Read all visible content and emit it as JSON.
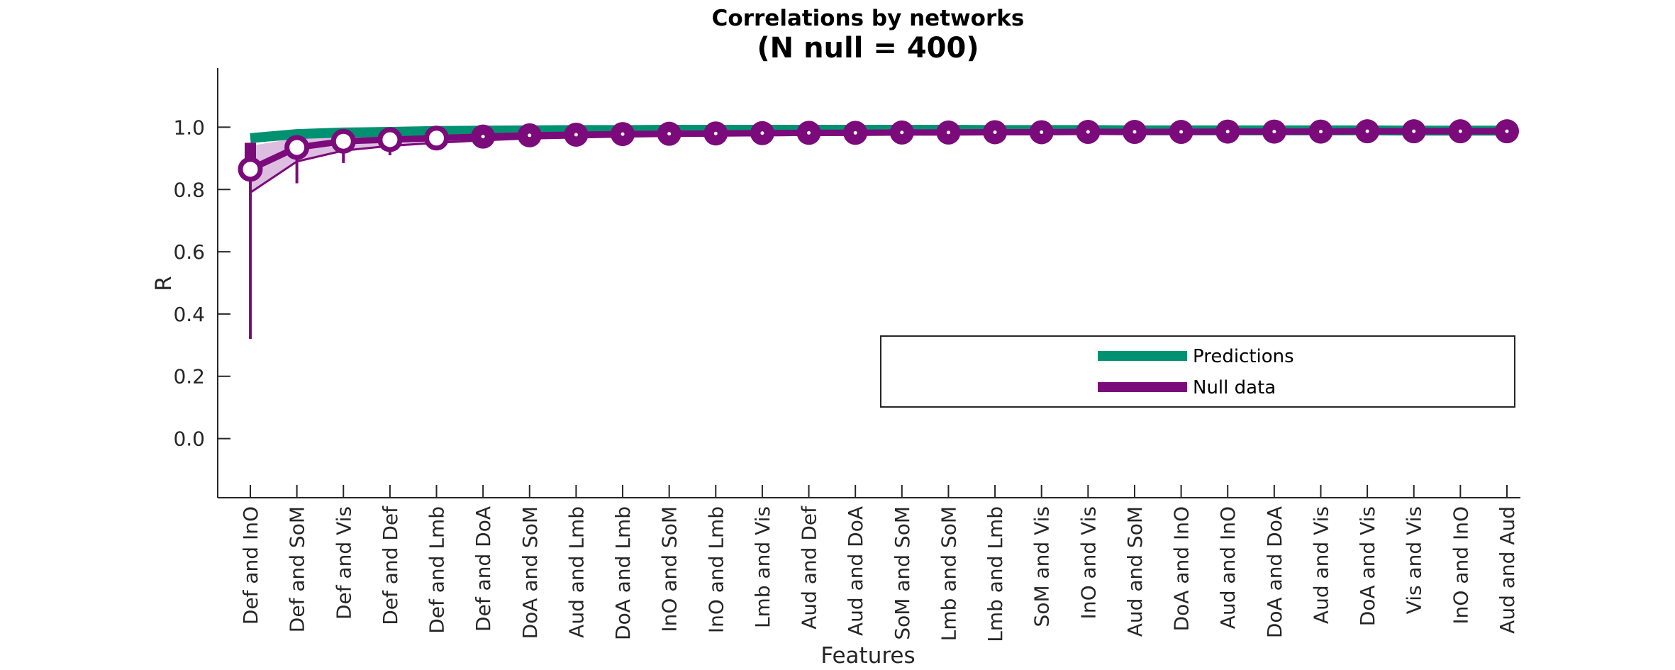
{
  "chart_data": {
    "type": "line",
    "title": "Correlations by networks",
    "subtitle": "(N null = 400)",
    "xlabel": "Features",
    "ylabel": "R",
    "ylim": [
      -0.19,
      1.19
    ],
    "yticks": [
      "0.0",
      "0.2",
      "0.4",
      "0.6",
      "0.8",
      "1.0"
    ],
    "ytick_values": [
      0.0,
      0.2,
      0.4,
      0.6,
      0.8,
      1.0
    ],
    "grid": false,
    "legend_position": "lower-right",
    "categories": [
      "Def and InO",
      "Def and SoM",
      "Def and Vis",
      "Def and Def",
      "Def and Lmb",
      "Def and DoA",
      "DoA and SoM",
      "Aud and Lmb",
      "DoA and Lmb",
      "InO and SoM",
      "InO and Lmb",
      "Lmb and Vis",
      "Aud and Def",
      "Aud and DoA",
      "SoM and SoM",
      "Lmb and SoM",
      "Lmb and Lmb",
      "SoM and Vis",
      "InO and Vis",
      "Aud and SoM",
      "DoA and InO",
      "Aud and InO",
      "DoA and DoA",
      "Aud and Vis",
      "DoA and Vis",
      "Vis and Vis",
      "InO and InO",
      "Aud and Aud"
    ],
    "series": [
      {
        "name": "Predictions",
        "color": "#009270",
        "values": [
          0.965,
          0.978,
          0.983,
          0.985,
          0.988,
          0.989,
          0.99,
          0.991,
          0.991,
          0.992,
          0.992,
          0.992,
          0.992,
          0.992,
          0.992,
          0.992,
          0.991,
          0.991,
          0.991,
          0.99,
          0.99,
          0.99,
          0.99,
          0.99,
          0.99,
          0.989,
          0.989,
          0.989
        ]
      },
      {
        "name": "Null data",
        "color": "#7b0a7b",
        "values": [
          0.865,
          0.935,
          0.955,
          0.96,
          0.965,
          0.97,
          0.974,
          0.976,
          0.978,
          0.979,
          0.98,
          0.981,
          0.982,
          0.982,
          0.983,
          0.983,
          0.984,
          0.984,
          0.985,
          0.985,
          0.985,
          0.986,
          0.986,
          0.986,
          0.987,
          0.987,
          0.987,
          0.987
        ],
        "band_lower": [
          0.79,
          0.89,
          0.925,
          0.94,
          0.95,
          0.958,
          0.964,
          0.967,
          0.97,
          0.972,
          0.973,
          0.974,
          0.975,
          0.976,
          0.977,
          0.978,
          0.979,
          0.98,
          0.98,
          0.981,
          0.981,
          0.982,
          0.982,
          0.983,
          0.983,
          0.984,
          0.984,
          0.984
        ],
        "band_upper": [
          0.94,
          0.965,
          0.975,
          0.975,
          0.978,
          0.98,
          0.983,
          0.984,
          0.985,
          0.986,
          0.986,
          0.987,
          0.987,
          0.987,
          0.988,
          0.988,
          0.988,
          0.989,
          0.989,
          0.989,
          0.989,
          0.99,
          0.99,
          0.99,
          0.99,
          0.99,
          0.99,
          0.99
        ],
        "err_lower": [
          0.32,
          0.82,
          0.885,
          0.91,
          0.935,
          0.95,
          0.958,
          0.962,
          0.965,
          0.968,
          0.97,
          0.972,
          0.973,
          0.974,
          0.975,
          0.976,
          0.977,
          0.978,
          0.978,
          0.979,
          0.98,
          0.98,
          0.981,
          0.981,
          0.982,
          0.982,
          0.983,
          0.983
        ],
        "err_upper": [
          0.95,
          0.96,
          0.975,
          0.978,
          0.98,
          0.982,
          0.984,
          0.985,
          0.986,
          0.987,
          0.987,
          0.988,
          0.988,
          0.988,
          0.989,
          0.989,
          0.989,
          0.99,
          0.99,
          0.99,
          0.99,
          0.991,
          0.991,
          0.991,
          0.991,
          0.991,
          0.991,
          0.991
        ]
      }
    ]
  }
}
